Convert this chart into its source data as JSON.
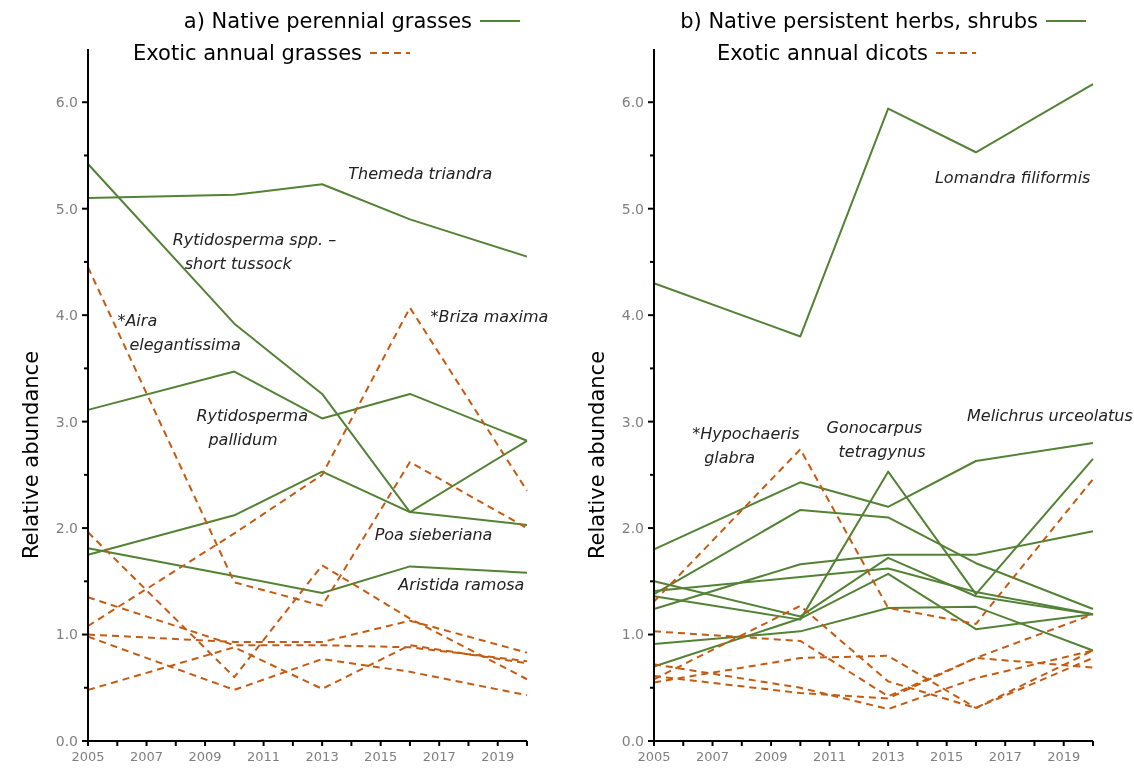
{
  "chart_data": [
    {
      "type": "line",
      "title": "a)",
      "ylabel": "Relative abundance",
      "legend": "top",
      "grid": false,
      "x": [
        2005,
        2010,
        2013,
        2016,
        2020
      ],
      "xlim": [
        2005,
        2020
      ],
      "xticks": [
        2005,
        {
          "value": 2006,
          "label": null
        },
        2007,
        {
          "value": 2008,
          "label": null
        },
        2009,
        {
          "value": 2010,
          "label": null
        },
        2011,
        {
          "value": 2012,
          "label": null
        },
        2013,
        {
          "value": 2014,
          "label": null
        },
        2015,
        {
          "value": 2016,
          "label": null
        },
        2017,
        {
          "value": 2018,
          "label": null
        },
        2019,
        {
          "value": 2020,
          "label": null
        }
      ],
      "ylim": [
        0,
        6.5
      ],
      "yticks": [
        {
          "value": 0,
          "label": "0.0"
        },
        {
          "value": 0.5,
          "label": null
        },
        {
          "value": 1,
          "label": "1.0"
        },
        {
          "value": 1.5,
          "label": null
        },
        {
          "value": 2,
          "label": "2.0"
        },
        {
          "value": 2.5,
          "label": null
        },
        {
          "value": 3,
          "label": "3.0"
        },
        {
          "value": 3.5,
          "label": null
        },
        {
          "value": 4,
          "label": "4.0"
        },
        {
          "value": 4.5,
          "label": null
        },
        {
          "value": 5,
          "label": "5.0"
        },
        {
          "value": 5.5,
          "label": null
        },
        {
          "value": 6,
          "label": "6.0"
        }
      ],
      "series": [
        {
          "name": "Native perennial grasses",
          "color": "#548235",
          "line_style": "solid",
          "values": [
            5.1,
            5.13,
            5.23,
            4.9,
            4.55
          ]
        },
        {
          "color": "#548235",
          "line_style": "solid",
          "values": [
            5.42,
            3.92,
            3.26,
            2.15,
            2.82
          ]
        },
        {
          "color": "#548235",
          "line_style": "solid",
          "values": [
            3.11,
            3.47,
            3.03,
            3.26,
            2.82
          ]
        },
        {
          "color": "#548235",
          "line_style": "solid",
          "values": [
            1.75,
            2.12,
            2.53,
            2.15,
            2.03
          ]
        },
        {
          "color": "#548235",
          "line_style": "solid",
          "values": [
            1.81,
            1.55,
            1.39,
            1.64,
            1.58
          ]
        },
        {
          "name": "Exotic annual grasses",
          "color": "#c55a11",
          "line_style": "dashed",
          "values": [
            4.45,
            1.49,
            1.27,
            2.62,
            2.0
          ]
        },
        {
          "color": "#c55a11",
          "line_style": "dashed",
          "values": [
            1.08,
            1.95,
            2.5,
            4.07,
            2.35
          ]
        },
        {
          "color": "#c55a11",
          "line_style": "dashed",
          "values": [
            1.96,
            0.6,
            1.65,
            1.15,
            0.58
          ]
        },
        {
          "color": "#c55a11",
          "line_style": "dashed",
          "values": [
            1.35,
            0.9,
            0.9,
            0.88,
            0.75
          ]
        },
        {
          "color": "#c55a11",
          "line_style": "dashed",
          "values": [
            1.0,
            0.93,
            0.93,
            1.13,
            0.83
          ]
        },
        {
          "color": "#c55a11",
          "line_style": "dashed",
          "values": [
            0.98,
            0.48,
            0.77,
            0.65,
            0.43
          ]
        },
        {
          "color": "#c55a11",
          "line_style": "dashed",
          "values": [
            0.48,
            0.88,
            0.49,
            0.9,
            0.73
          ]
        }
      ],
      "annotations": [
        "Themeda triandra",
        "Rytidosperma spp. –\nshort tussock",
        "*Aira\nelegantissima",
        "*Briza maxima",
        "Rytidosperma\npallidum",
        "Poa sieberiana",
        "Aristida ramosa"
      ]
    },
    {
      "type": "line",
      "title": "b)",
      "ylabel": "Relative abundance",
      "legend": "top",
      "grid": false,
      "x": [
        2005,
        2010,
        2013,
        2016,
        2020
      ],
      "xlim": [
        2005,
        2020
      ],
      "xticks": [
        2005,
        {
          "value": 2006,
          "label": null
        },
        2007,
        {
          "value": 2008,
          "label": null
        },
        2009,
        {
          "value": 2010,
          "label": null
        },
        2011,
        {
          "value": 2012,
          "label": null
        },
        2013,
        {
          "value": 2014,
          "label": null
        },
        2015,
        {
          "value": 2016,
          "label": null
        },
        2017,
        {
          "value": 2018,
          "label": null
        },
        2019,
        {
          "value": 2020,
          "label": null
        }
      ],
      "ylim": [
        0,
        6.5
      ],
      "yticks": [
        {
          "value": 0,
          "label": "0.0"
        },
        {
          "value": 0.5,
          "label": null
        },
        {
          "value": 1,
          "label": "1.0"
        },
        {
          "value": 1.5,
          "label": null
        },
        {
          "value": 2,
          "label": "2.0"
        },
        {
          "value": 2.5,
          "label": null
        },
        {
          "value": 3,
          "label": "3.0"
        },
        {
          "value": 3.5,
          "label": null
        },
        {
          "value": 4,
          "label": "4.0"
        },
        {
          "value": 4.5,
          "label": null
        },
        {
          "value": 5,
          "label": "5.0"
        },
        {
          "value": 5.5,
          "label": null
        },
        {
          "value": 6,
          "label": "6.0"
        }
      ],
      "series": [
        {
          "name": "Native persistent herbs, shrubs",
          "color": "#548235",
          "line_style": "solid",
          "values": [
            4.3,
            3.8,
            5.94,
            5.53,
            6.17
          ]
        },
        {
          "color": "#548235",
          "line_style": "solid",
          "values": [
            1.8,
            2.43,
            2.2,
            2.63,
            2.8
          ]
        },
        {
          "color": "#548235",
          "line_style": "solid",
          "values": [
            1.38,
            2.17,
            2.1,
            1.67,
            1.24
          ]
        },
        {
          "color": "#548235",
          "line_style": "solid",
          "values": [
            1.36,
            1.14,
            2.53,
            1.38,
            2.65
          ]
        },
        {
          "color": "#548235",
          "line_style": "solid",
          "values": [
            1.24,
            1.66,
            1.75,
            1.75,
            1.97
          ]
        },
        {
          "color": "#548235",
          "line_style": "solid",
          "values": [
            1.41,
            1.54,
            1.62,
            1.4,
            1.19
          ]
        },
        {
          "color": "#548235",
          "line_style": "solid",
          "values": [
            1.5,
            1.17,
            1.72,
            1.36,
            1.19
          ]
        },
        {
          "color": "#548235",
          "line_style": "solid",
          "values": [
            0.91,
            1.03,
            1.25,
            1.26,
            0.85
          ]
        },
        {
          "color": "#548235",
          "line_style": "solid",
          "values": [
            0.7,
            1.15,
            1.57,
            1.05,
            1.19
          ]
        },
        {
          "name": "Exotic annual dicots",
          "color": "#c55a11",
          "line_style": "dashed",
          "values": [
            1.31,
            2.74,
            1.25,
            1.1,
            2.46
          ]
        },
        {
          "color": "#c55a11",
          "line_style": "dashed",
          "values": [
            1.03,
            0.94,
            0.42,
            0.78,
            0.69
          ]
        },
        {
          "color": "#c55a11",
          "line_style": "dashed",
          "values": [
            0.58,
            1.27,
            0.56,
            0.31,
            0.85
          ]
        },
        {
          "color": "#c55a11",
          "line_style": "dashed",
          "values": [
            0.72,
            0.5,
            0.3,
            0.59,
            0.85
          ]
        },
        {
          "color": "#c55a11",
          "line_style": "dashed",
          "values": [
            0.55,
            0.78,
            0.8,
            0.31,
            0.78
          ]
        },
        {
          "color": "#c55a11",
          "line_style": "dashed",
          "values": [
            0.61,
            0.45,
            0.4,
            0.78,
            1.19
          ]
        }
      ],
      "annotations": [
        "Lomandra filiformis",
        "*Hypochaeris\nglabra",
        "Gonocarpus\ntetragynus",
        "Melichrus urceolatus"
      ]
    }
  ]
}
